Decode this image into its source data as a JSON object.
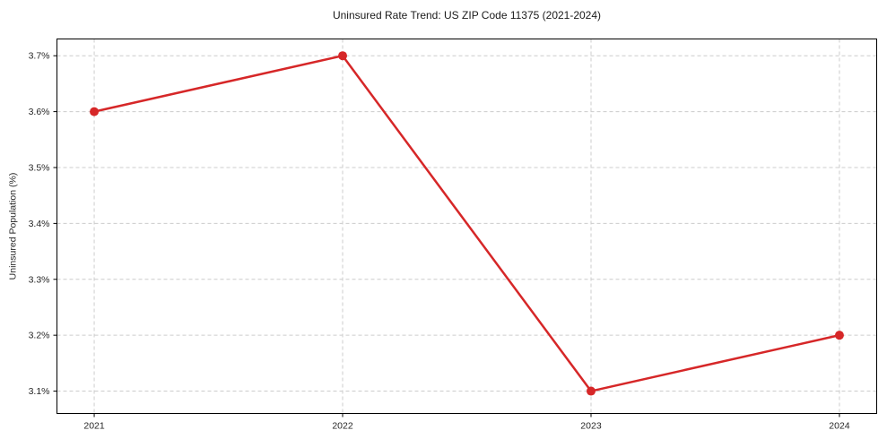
{
  "chart_data": {
    "type": "line",
    "title": "Uninsured Rate Trend: US ZIP Code 11375 (2021-2024)",
    "xlabel": "",
    "ylabel": "Uninsured Population (%)",
    "x": [
      2021,
      2022,
      2023,
      2024
    ],
    "values": [
      3.6,
      3.7,
      3.1,
      3.2
    ],
    "x_tick_labels": [
      "2021",
      "2022",
      "2023",
      "2024"
    ],
    "y_ticks": [
      3.1,
      3.2,
      3.3,
      3.4,
      3.5,
      3.6,
      3.7
    ],
    "y_tick_labels": [
      "3.1%",
      "3.2%",
      "3.3%",
      "3.4%",
      "3.5%",
      "3.6%",
      "3.7%"
    ],
    "xlim": [
      2020.85,
      2024.15
    ],
    "ylim": [
      3.06,
      3.73
    ],
    "grid": true,
    "legend": false,
    "line_color": "#d62728",
    "marker": "circle",
    "grid_color": "#cccccc",
    "spine_color": "#000000",
    "background": "#ffffff"
  }
}
